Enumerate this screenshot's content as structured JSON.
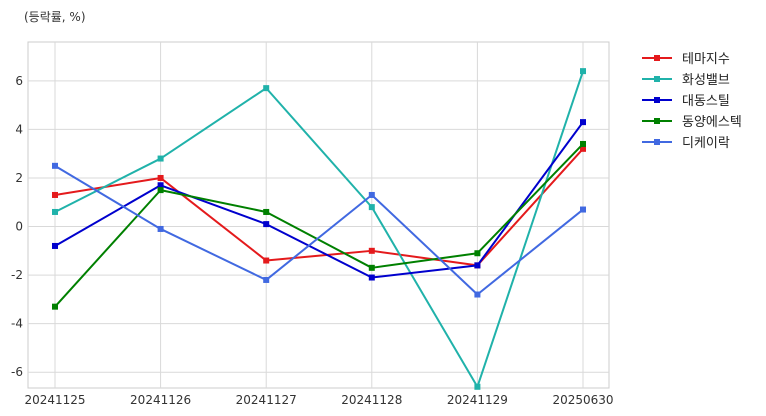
{
  "unit_note": "(등락률, %)",
  "chart_data": {
    "type": "line",
    "title": "",
    "xlabel": "",
    "ylabel": "(등락률, %)",
    "categories": [
      "20241125",
      "20241126",
      "20241127",
      "20241128",
      "20241129",
      "20250630"
    ],
    "ylim": [
      -6.65,
      7.6
    ],
    "yticks": [
      -6,
      -4,
      -2,
      0,
      2,
      4,
      6
    ],
    "grid": true,
    "legend_position": "outside-right-top",
    "series": [
      {
        "name": "테마지수",
        "color": "#e41a1c",
        "values": [
          1.3,
          2.0,
          -1.4,
          -1.0,
          -1.6,
          3.2
        ]
      },
      {
        "name": "화성밸브",
        "color": "#20b2aa",
        "values": [
          0.6,
          2.8,
          5.7,
          0.8,
          -6.6,
          6.4
        ]
      },
      {
        "name": "대동스틸",
        "color": "#0000cd",
        "values": [
          -0.8,
          1.7,
          0.1,
          -2.1,
          -1.6,
          4.3
        ]
      },
      {
        "name": "동양에스텍",
        "color": "#008000",
        "values": [
          -3.3,
          1.5,
          0.6,
          -1.7,
          -1.1,
          3.4
        ]
      },
      {
        "name": "디케이락",
        "color": "#4169e1",
        "values": [
          2.5,
          -0.1,
          -2.2,
          1.3,
          -2.8,
          0.7
        ]
      }
    ]
  }
}
